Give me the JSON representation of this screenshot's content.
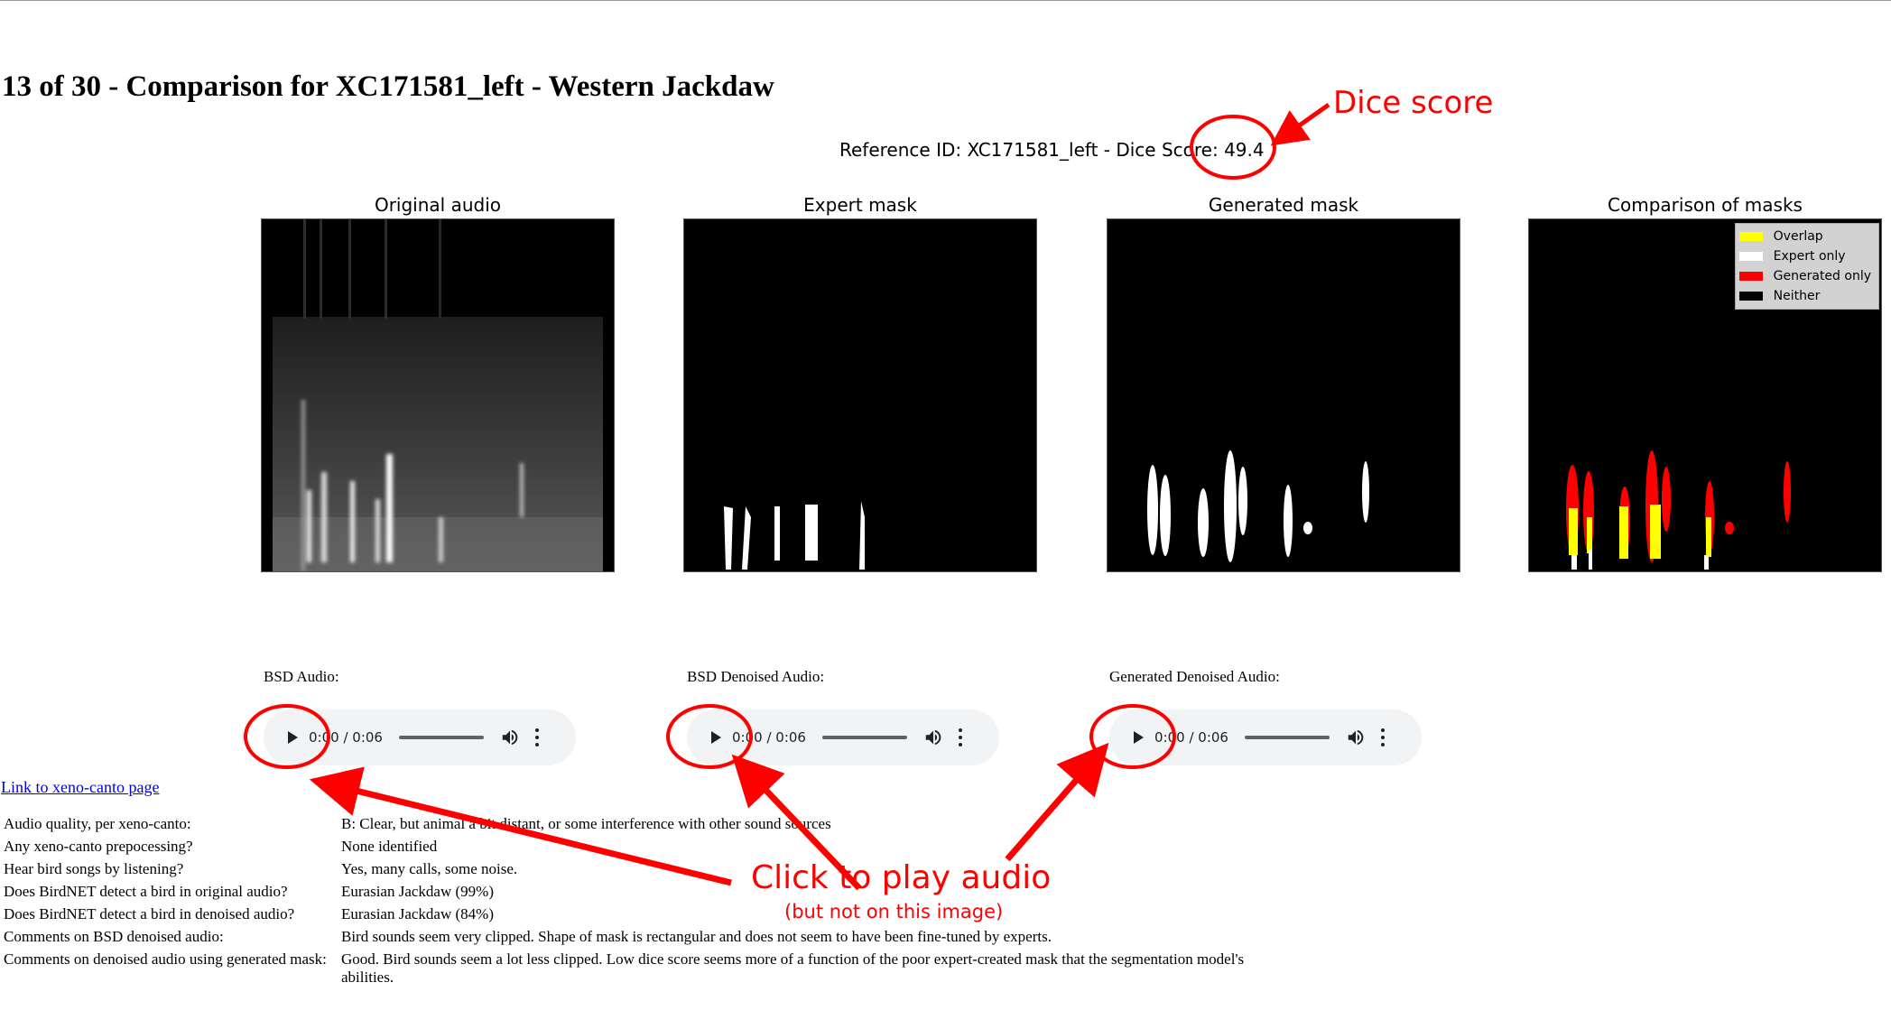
{
  "page": {
    "title": "13 of 30 - Comparison for XC171581_left - Western Jackdaw",
    "reference_line": "Reference ID: XC171581_left - Dice Score: 49.4"
  },
  "panels": [
    {
      "title": "Original audio"
    },
    {
      "title": "Expert mask"
    },
    {
      "title": "Generated mask"
    },
    {
      "title": "Comparison of masks"
    }
  ],
  "legend": [
    {
      "label": "Overlap",
      "color": "#ffff00"
    },
    {
      "label": "Expert only",
      "color": "#ffffff"
    },
    {
      "label": "Generated only",
      "color": "#ff0000"
    },
    {
      "label": "Neither",
      "color": "#000000"
    }
  ],
  "audio": [
    {
      "label": "BSD Audio:",
      "time": "0:00 / 0:06"
    },
    {
      "label": "BSD Denoised Audio:",
      "time": "0:00 / 0:06"
    },
    {
      "label": "Generated Denoised Audio:",
      "time": "0:00 / 0:06"
    }
  ],
  "link": {
    "text": "Link to xeno-canto page"
  },
  "info": [
    {
      "q": "Audio quality, per xeno-canto:",
      "a": "B: Clear, but animal a bit distant, or some interference with other sound sources"
    },
    {
      "q": "Any xeno-canto prepocessing?",
      "a": "None identified"
    },
    {
      "q": "Hear bird songs by listening?",
      "a": "Yes, many calls, some noise."
    },
    {
      "q": "Does BirdNET detect a bird in original audio?",
      "a": "Eurasian Jackdaw (99%)"
    },
    {
      "q": "Does BirdNET detect a bird in denoised audio?",
      "a": "Eurasian Jackdaw (84%)"
    },
    {
      "q": "Comments on BSD denoised audio:",
      "a": "Bird sounds seem very clipped. Shape of mask is rectangular and does not seem to have been fine-tuned by experts."
    },
    {
      "q": "Comments on denoised audio using generated mask:",
      "a": "Good. Bird sounds seem a lot less clipped. Low dice score seems more of a function of the poor expert-created mask that the segmentation model's abilities."
    }
  ],
  "annotations": {
    "dice_label": "Dice score",
    "play_label": "Click to play audio",
    "play_note": "(but not on this image)",
    "color": "#ff0000"
  }
}
